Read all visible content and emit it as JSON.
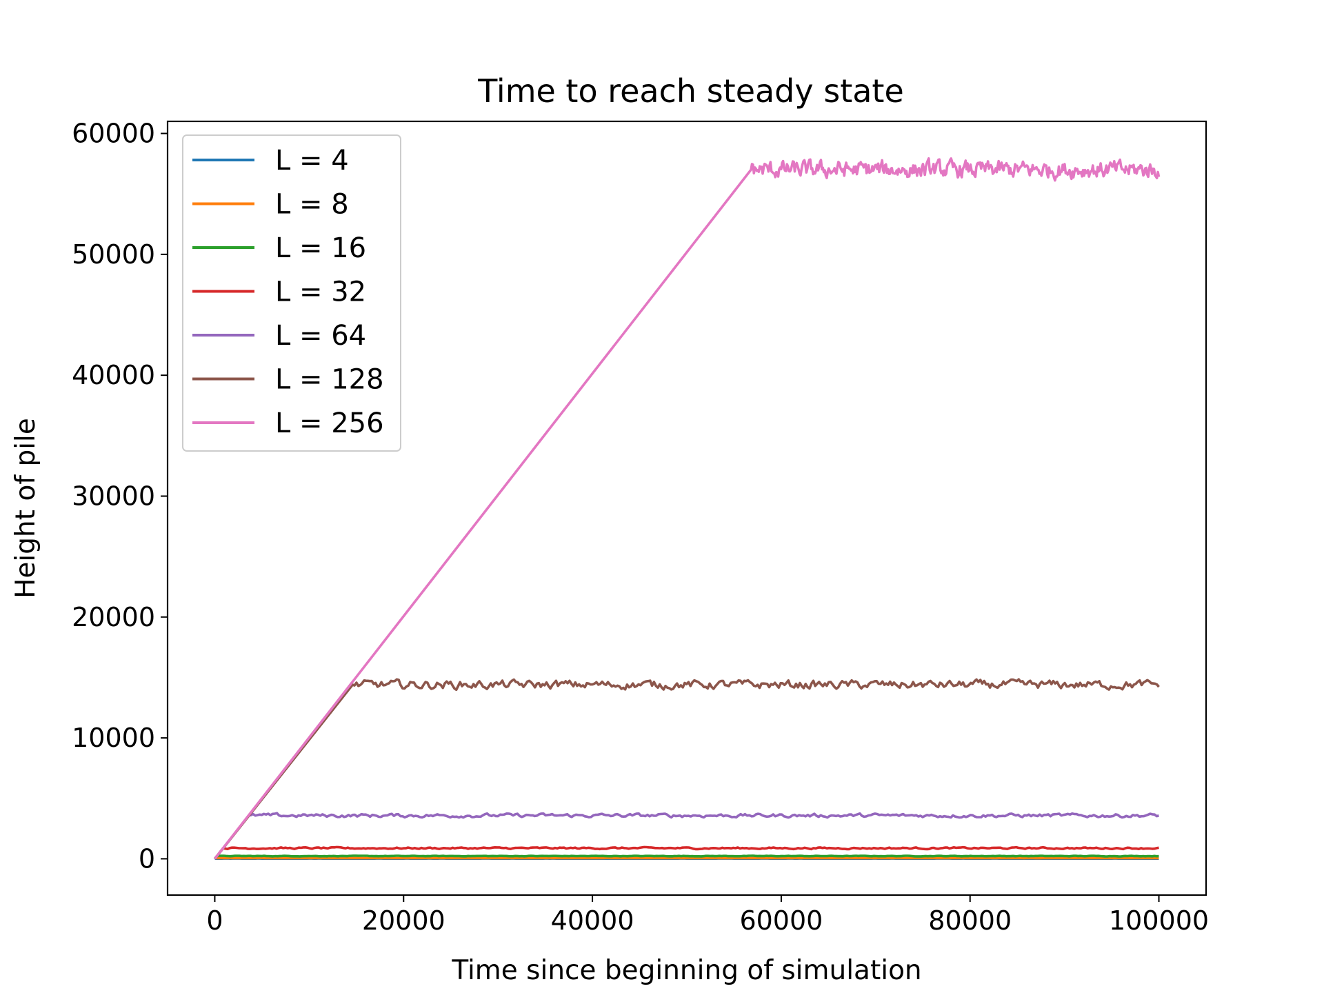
{
  "chart_data": {
    "type": "line",
    "title": "Time to reach steady state",
    "xlabel": "Time since beginning of simulation",
    "ylabel": "Height of pile",
    "xlim": [
      -5000,
      105000
    ],
    "ylim": [
      -3000,
      61000
    ],
    "xticks": [
      0,
      20000,
      40000,
      60000,
      80000,
      100000
    ],
    "yticks": [
      0,
      10000,
      20000,
      30000,
      40000,
      50000,
      60000
    ],
    "grid": false,
    "legend_position": "upper left",
    "series": [
      {
        "name": "L = 4",
        "color": "#1f77b4",
        "x": [
          0,
          10,
          100000
        ],
        "y": [
          0,
          14,
          14
        ],
        "noise": 1
      },
      {
        "name": "L = 8",
        "color": "#ff7f0e",
        "x": [
          0,
          40,
          100000
        ],
        "y": [
          0,
          55,
          55
        ],
        "noise": 4
      },
      {
        "name": "L = 16",
        "color": "#2ca02c",
        "x": [
          0,
          230,
          100000
        ],
        "y": [
          0,
          228,
          228
        ],
        "noise": 18
      },
      {
        "name": "L = 32",
        "color": "#d62728",
        "x": [
          0,
          880,
          100000
        ],
        "y": [
          0,
          880,
          880
        ],
        "noise": 55
      },
      {
        "name": "L = 64",
        "color": "#9467bd",
        "x": [
          0,
          3600,
          100000
        ],
        "y": [
          0,
          3580,
          3580
        ],
        "noise": 120
      },
      {
        "name": "L = 128",
        "color": "#8c564b",
        "x": [
          0,
          14600,
          100000
        ],
        "y": [
          0,
          14400,
          14400
        ],
        "noise": 280
      },
      {
        "name": "L = 256",
        "color": "#e377c2",
        "x": [
          0,
          56800,
          100000
        ],
        "y": [
          0,
          57000,
          57000
        ],
        "noise": 550
      }
    ]
  }
}
